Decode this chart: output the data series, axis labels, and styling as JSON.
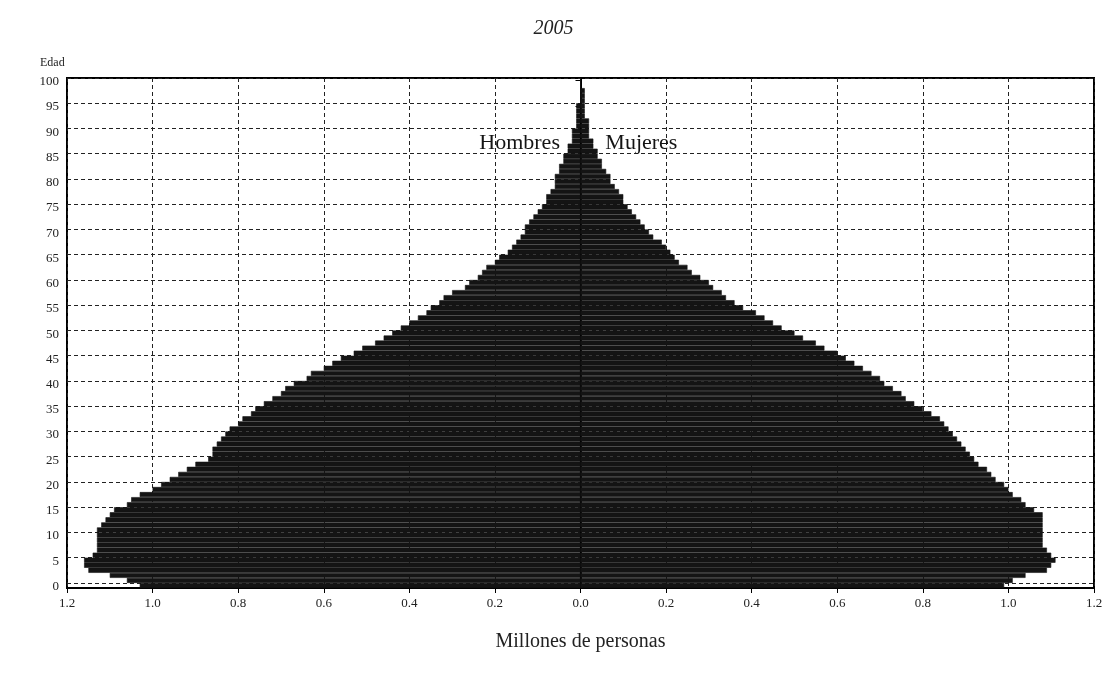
{
  "chart_data": {
    "type": "bar",
    "orientation": "horizontal",
    "stacked": true,
    "title": "2005",
    "ylabel": "Edad",
    "xlabel": "Millones de personas",
    "categories": [
      "100",
      null,
      null,
      null,
      null,
      "95",
      null,
      null,
      null,
      null,
      "90",
      null,
      null,
      null,
      null,
      "85",
      null,
      null,
      null,
      null,
      "80",
      null,
      null,
      null,
      null,
      "75",
      null,
      null,
      null,
      null,
      "70",
      null,
      null,
      null,
      null,
      "65",
      null,
      null,
      null,
      null,
      "60",
      null,
      null,
      null,
      null,
      "55",
      null,
      null,
      null,
      null,
      "50",
      null,
      null,
      null,
      null,
      "45",
      null,
      null,
      null,
      null,
      "40",
      null,
      null,
      null,
      null,
      "35",
      null,
      null,
      null,
      null,
      "30",
      null,
      null,
      null,
      null,
      "25",
      null,
      null,
      null,
      null,
      "20",
      null,
      null,
      null,
      null,
      "15",
      null,
      null,
      null,
      null,
      "10",
      null,
      null,
      null,
      null,
      "5",
      null,
      null,
      null,
      null,
      "0"
    ],
    "series": [
      {
        "name": "Hombres",
        "color": "#141414",
        "values": [
          0,
          0,
          0,
          0,
          0,
          -0.01,
          -0.01,
          -0.01,
          -0.01,
          -0.01,
          -0.02,
          -0.02,
          -0.02,
          -0.03,
          -0.03,
          -0.04,
          -0.04,
          -0.05,
          -0.05,
          -0.06,
          -0.06,
          -0.06,
          -0.07,
          -0.08,
          -0.08,
          -0.09,
          -0.1,
          -0.11,
          -0.12,
          -0.13,
          -0.13,
          -0.14,
          -0.15,
          -0.16,
          -0.17,
          -0.19,
          -0.2,
          -0.22,
          -0.23,
          -0.24,
          -0.26,
          -0.27,
          -0.3,
          -0.32,
          -0.33,
          -0.35,
          -0.36,
          -0.38,
          -0.4,
          -0.42,
          -0.44,
          -0.46,
          -0.48,
          -0.51,
          -0.53,
          -0.56,
          -0.58,
          -0.6,
          -0.63,
          -0.64,
          -0.67,
          -0.69,
          -0.7,
          -0.72,
          -0.74,
          -0.76,
          -0.77,
          -0.79,
          -0.8,
          -0.82,
          -0.83,
          -0.84,
          -0.85,
          -0.86,
          -0.86,
          -0.87,
          -0.9,
          -0.92,
          -0.94,
          -0.96,
          -0.98,
          -1.0,
          -1.03,
          -1.05,
          -1.06,
          -1.09,
          -1.1,
          -1.11,
          -1.12,
          -1.13,
          -1.13,
          -1.13,
          -1.13,
          -1.13,
          -1.14,
          -1.16,
          -1.16,
          -1.15,
          -1.1,
          -1.06,
          -1.03
        ]
      },
      {
        "name": "Mujeres",
        "color": "#141414",
        "values": [
          0,
          0,
          0.01,
          0.01,
          0.01,
          0.01,
          0.01,
          0.01,
          0.02,
          0.02,
          0.02,
          0.02,
          0.03,
          0.03,
          0.04,
          0.04,
          0.05,
          0.05,
          0.06,
          0.07,
          0.07,
          0.08,
          0.09,
          0.1,
          0.1,
          0.11,
          0.12,
          0.13,
          0.14,
          0.15,
          0.16,
          0.17,
          0.19,
          0.2,
          0.21,
          0.22,
          0.23,
          0.25,
          0.26,
          0.28,
          0.3,
          0.31,
          0.33,
          0.34,
          0.36,
          0.38,
          0.41,
          0.43,
          0.45,
          0.47,
          0.5,
          0.52,
          0.55,
          0.57,
          0.6,
          0.62,
          0.64,
          0.66,
          0.68,
          0.7,
          0.71,
          0.73,
          0.75,
          0.76,
          0.78,
          0.8,
          0.82,
          0.84,
          0.85,
          0.86,
          0.87,
          0.88,
          0.89,
          0.9,
          0.91,
          0.92,
          0.93,
          0.95,
          0.96,
          0.97,
          0.99,
          1.0,
          1.01,
          1.03,
          1.04,
          1.06,
          1.08,
          1.08,
          1.08,
          1.08,
          1.08,
          1.08,
          1.08,
          1.09,
          1.1,
          1.11,
          1.1,
          1.09,
          1.04,
          1.01,
          0.99
        ]
      }
    ],
    "xlim": [
      -1.2,
      1.2
    ],
    "xticks": [
      {
        "value": -1.2,
        "label": "1.2"
      },
      {
        "value": -1.0,
        "label": "1.0"
      },
      {
        "value": -0.8,
        "label": "0.8"
      },
      {
        "value": -0.6,
        "label": "0.6"
      },
      {
        "value": -0.4,
        "label": "0.4"
      },
      {
        "value": -0.2,
        "label": "0.2"
      },
      {
        "value": 0,
        "label": "0.0"
      },
      {
        "value": 0.2,
        "label": "0.2"
      },
      {
        "value": 0.4,
        "label": "0.4"
      },
      {
        "value": 0.6,
        "label": "0.6"
      },
      {
        "value": 0.8,
        "label": "0.8"
      },
      {
        "value": 1.0,
        "label": "1.0"
      },
      {
        "value": 1.2,
        "label": "1.2"
      }
    ],
    "grid": true,
    "legend": false
  }
}
